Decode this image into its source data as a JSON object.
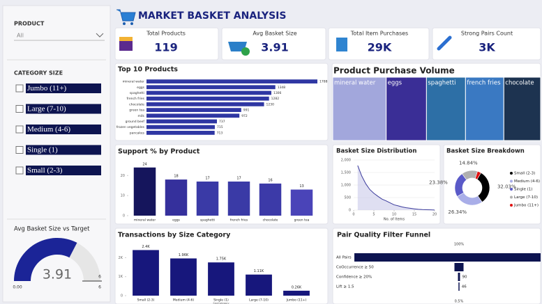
{
  "header": {
    "title": "MARKET BASKET ANALYSIS"
  },
  "filters": {
    "product": {
      "label": "PRODUCT",
      "selected": "All"
    },
    "category_size": {
      "label": "CATEGORY SIZE",
      "options": [
        "Jumbo (11+)",
        "Large (7-10)",
        "Medium (4-6)",
        "Single (1)",
        "Small (2-3)"
      ]
    }
  },
  "kpis": [
    {
      "label": "Total Products",
      "value": "119"
    },
    {
      "label": "Avg Basket Size",
      "value": "3.91"
    },
    {
      "label": "Total Item Purchases",
      "value": "29K"
    },
    {
      "label": "Strong Pairs Count",
      "value": "3K"
    }
  ],
  "chart_data": [
    {
      "type": "gauge",
      "title": "Avg Basket Size vs Target",
      "value": 3.91,
      "target": 6,
      "lim": [
        {
          "value": 0,
          "label": "0.00"
        },
        6
      ],
      "color": "#1b2497"
    },
    {
      "type": "hbar",
      "title": "Top 10 Products",
      "categories": [
        "mineral water",
        "eggs",
        "spaghetti",
        "french fries",
        "chocolate",
        "green tea",
        "milk",
        "ground beef",
        "frozen vegetables",
        "pancakes"
      ],
      "values": [
        1788,
        1348,
        1306,
        1282,
        1230,
        991,
        972,
        737,
        715,
        713
      ],
      "color": "#2f37a3"
    },
    {
      "type": "treemap",
      "title": "Product Purchase Volume",
      "categories": [
        "mineral water",
        "eggs",
        "spaghetti",
        "french fries",
        "chocolate"
      ],
      "values": [
        1788,
        1348,
        1306,
        1282,
        1230
      ],
      "colors": [
        "#a2a7dc",
        "#3a2e96",
        "#2d6fa6",
        "#3a79c2",
        "#1d3350"
      ]
    },
    {
      "type": "bar",
      "title": "Support % by Product",
      "categories": [
        "mineral water",
        "eggs",
        "spaghetti",
        "french fries",
        "chocolate",
        "green tea"
      ],
      "values": [
        24,
        18,
        17,
        17,
        16,
        13
      ],
      "colors": [
        "#15155c",
        "#35309c",
        "#3a3aa6",
        "#3a3aa6",
        "#3c3aa8",
        "#4a44b8"
      ],
      "ylim": [
        0,
        26
      ],
      "yticks": [
        0,
        10,
        20
      ]
    },
    {
      "type": "area",
      "title": "Basket Size Distribution",
      "x": [
        1,
        2,
        3,
        4,
        5,
        6,
        7,
        8,
        9,
        10,
        11,
        12,
        13,
        14,
        15,
        16,
        17,
        18,
        19,
        20
      ],
      "values": [
        1780,
        1360,
        1050,
        820,
        670,
        550,
        440,
        370,
        290,
        210,
        170,
        125,
        95,
        72,
        50,
        30,
        20,
        14,
        9,
        5
      ],
      "xlim": [
        0,
        20
      ],
      "ylim": [
        0,
        2000
      ],
      "xticks": [
        0,
        5,
        10,
        15,
        20
      ],
      "yticks": [
        0,
        500,
        {
          "value": 1000,
          "label": "1,000"
        },
        {
          "value": 1500,
          "label": "1,500"
        },
        {
          "value": 2000,
          "label": "2,000"
        }
      ],
      "x_label": "No. of Items",
      "color": "#3b3b9c"
    },
    {
      "type": "donut",
      "title": "Basket Size Breakdown",
      "categories": [
        "Small (2-3)",
        "Medium (4-6)",
        "Single (1)",
        "Large (7-10)",
        "Jumbo (11+)"
      ],
      "values": [
        32.03,
        26.34,
        23.38,
        14.84,
        3.41
      ],
      "value_labels": [
        "32.03%",
        "26.34%",
        "23.38%",
        "14.84%",
        null
      ],
      "colors": [
        "#000000",
        "#a9aee8",
        "#5a5ac8",
        "#b0b0b0",
        "#e01010"
      ]
    },
    {
      "type": "bar",
      "title": "Transactions by Size Category",
      "categories": [
        "Small (2-3)",
        "Medium (4-6)",
        "Single (1)",
        "Large (7-10)",
        "Jumbo (11+)"
      ],
      "values": [
        2400,
        1960,
        1750,
        1110,
        260
      ],
      "value_labels": [
        "2.4K",
        "1.96K",
        "1.75K",
        "1.11K",
        "0.26K"
      ],
      "colors": [
        "#17177c",
        "#17177c",
        "#17177c",
        "#17177c",
        "#17177c"
      ],
      "ylim": [
        0,
        2600
      ],
      "yticks": [
        0,
        {
          "value": 1000,
          "label": "1K"
        },
        {
          "value": 2000,
          "label": "2K"
        }
      ],
      "x_label": "SizeCategory"
    },
    {
      "type": "funnel",
      "title": "Pair Quality Filter Funnel",
      "categories": [
        "All Pairs",
        "CoOccurrence ≥ 50",
        "Confidence ≥ 20%",
        "Lift ≥ 1.5"
      ],
      "values": [
        9200,
        400,
        90,
        46
      ],
      "value_labels": [
        null,
        null,
        "90",
        "46"
      ],
      "top_label": "100%",
      "bottom_label": "0.5%",
      "color": "#0d1450"
    }
  ]
}
